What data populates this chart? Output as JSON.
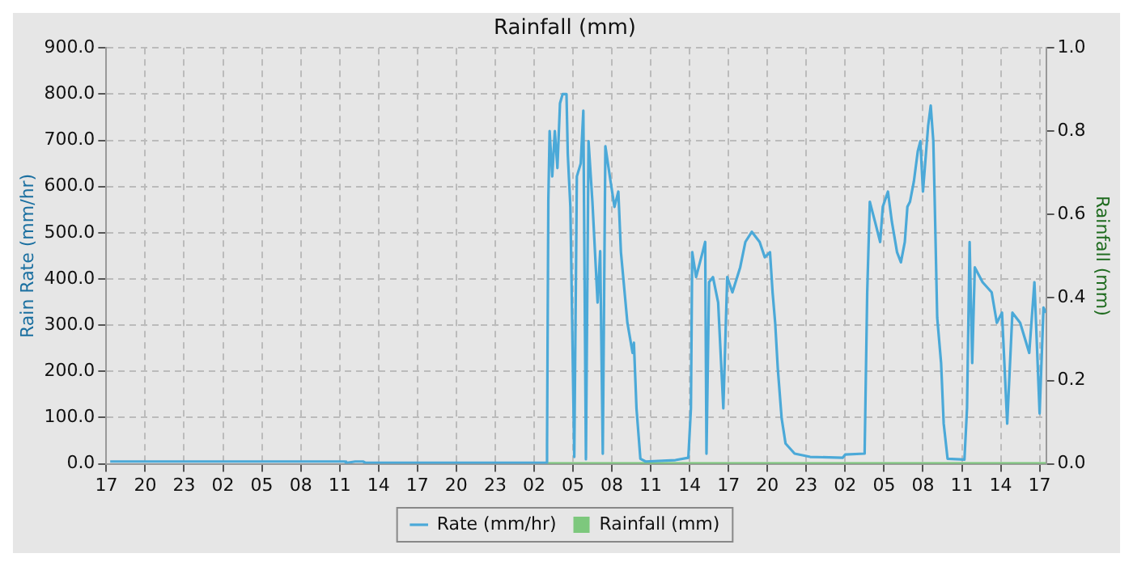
{
  "chart_data": {
    "type": "line",
    "title": "Rainfall (mm)",
    "ylabel": "Rain Rate (mm/hr)",
    "y2label": "Rainfall (mm)",
    "xlim": [
      "--01-01T17:00",
      "--01-04T17:30"
    ],
    "xticks": [
      {
        "value": "--01-01T17:00",
        "label": "17"
      },
      {
        "value": "--01-01T20:00",
        "label": "20"
      },
      {
        "value": "--01-01T23:00",
        "label": "23"
      },
      {
        "value": "--01-02T02:00",
        "label": "02"
      },
      {
        "value": "--01-02T05:00",
        "label": "05"
      },
      {
        "value": "--01-02T08:00",
        "label": "08"
      },
      {
        "value": "--01-02T11:00",
        "label": "11"
      },
      {
        "value": "--01-02T14:00",
        "label": "14"
      },
      {
        "value": "--01-02T17:00",
        "label": "17"
      },
      {
        "value": "--01-02T20:00",
        "label": "20"
      },
      {
        "value": "--01-02T23:00",
        "label": "23"
      },
      {
        "value": "--01-03T02:00",
        "label": "02"
      },
      {
        "value": "--01-03T05:00",
        "label": "05"
      },
      {
        "value": "--01-03T08:00",
        "label": "08"
      },
      {
        "value": "--01-03T11:00",
        "label": "11"
      },
      {
        "value": "--01-03T14:00",
        "label": "14"
      },
      {
        "value": "--01-03T17:00",
        "label": "17"
      },
      {
        "value": "--01-03T20:00",
        "label": "20"
      },
      {
        "value": "--01-03T23:00",
        "label": "23"
      },
      {
        "value": "--01-04T02:00",
        "label": "02"
      },
      {
        "value": "--01-04T05:00",
        "label": "05"
      },
      {
        "value": "--01-04T08:00",
        "label": "08"
      },
      {
        "value": "--01-04T11:00",
        "label": "11"
      },
      {
        "value": "--01-04T14:00",
        "label": "14"
      },
      {
        "value": "--01-04T17:00",
        "label": "17"
      }
    ],
    "ylim": [
      0,
      900
    ],
    "yticks": [
      {
        "value": 0,
        "label": "0.0"
      },
      {
        "value": 100,
        "label": "100.0"
      },
      {
        "value": 200,
        "label": "200.0"
      },
      {
        "value": 300,
        "label": "300.0"
      },
      {
        "value": 400,
        "label": "400.0"
      },
      {
        "value": 500,
        "label": "500.0"
      },
      {
        "value": 600,
        "label": "600.0"
      },
      {
        "value": 700,
        "label": "700.0"
      },
      {
        "value": 800,
        "label": "800.0"
      },
      {
        "value": 900,
        "label": "900.0"
      }
    ],
    "y2lim": [
      0,
      1
    ],
    "y2ticks": [
      {
        "value": 0,
        "label": "0.0"
      },
      {
        "value": 0.2,
        "label": "0.2"
      },
      {
        "value": 0.4,
        "label": "0.4"
      },
      {
        "value": 0.6,
        "label": "0.6"
      },
      {
        "value": 0.8,
        "label": "0.8"
      },
      {
        "value": 1,
        "label": "1.0"
      }
    ],
    "grid": true,
    "legend": "bottom",
    "line_style": "solid",
    "marker": "none",
    "series": [
      {
        "name": "Rate (mm/hr)",
        "color": "#4ba9d8",
        "axis": "y",
        "x": [
          "--01-01T17:18",
          "--01-02T11:24",
          "--01-02T11:30",
          "--01-02T12:12",
          "--01-02T12:48",
          "--01-02T13:00",
          "--01-03T02:54",
          "--01-03T03:00",
          "--01-03T03:06",
          "--01-03T03:12",
          "--01-03T03:24",
          "--01-03T03:36",
          "--01-03T03:48",
          "--01-03T04:00",
          "--01-03T04:12",
          "--01-03T04:30",
          "--01-03T04:36",
          "--01-03T04:48",
          "--01-03T05:06",
          "--01-03T05:18",
          "--01-03T05:36",
          "--01-03T05:48",
          "--01-03T06:00",
          "--01-03T06:12",
          "--01-03T06:30",
          "--01-03T06:54",
          "--01-03T07:06",
          "--01-03T07:18",
          "--01-03T07:30",
          "--01-03T07:54",
          "--01-03T08:12",
          "--01-03T08:30",
          "--01-03T08:42",
          "--01-03T09:12",
          "--01-03T09:36",
          "--01-03T09:42",
          "--01-03T09:54",
          "--01-03T10:12",
          "--01-03T10:36",
          "--01-03T12:54",
          "--01-03T13:54",
          "--01-03T14:06",
          "--01-03T14:12",
          "--01-03T14:30",
          "--01-03T15:00",
          "--01-03T15:12",
          "--01-03T15:18",
          "--01-03T15:30",
          "--01-03T15:48",
          "--01-03T16:12",
          "--01-03T16:36",
          "--01-03T16:54",
          "--01-03T17:18",
          "--01-03T17:54",
          "--01-03T18:18",
          "--01-03T18:48",
          "--01-03T19:24",
          "--01-03T19:48",
          "--01-03T20:12",
          "--01-03T20:24",
          "--01-03T20:36",
          "--01-03T20:48",
          "--01-03T21:06",
          "--01-03T21:24",
          "--01-03T22:06",
          "--01-03T23:18",
          "--01-04T01:48",
          "--01-04T02:00",
          "--01-04T03:30",
          "--01-04T03:42",
          "--01-04T03:54",
          "--01-04T04:18",
          "--01-04T04:42",
          "--01-04T04:54",
          "--01-04T05:18",
          "--01-04T05:36",
          "--01-04T06:00",
          "--01-04T06:18",
          "--01-04T06:36",
          "--01-04T06:48",
          "--01-04T07:00",
          "--01-04T07:18",
          "--01-04T07:36",
          "--01-04T07:48",
          "--01-04T08:00",
          "--01-04T08:24",
          "--01-04T08:36",
          "--01-04T08:48",
          "--01-04T08:54",
          "--01-04T09:06",
          "--01-04T09:24",
          "--01-04T09:36",
          "--01-04T09:54",
          "--01-04T11:12",
          "--01-04T11:24",
          "--01-04T11:36",
          "--01-04T11:48",
          "--01-04T12:00",
          "--01-04T12:36",
          "--01-04T13:18",
          "--01-04T13:42",
          "--01-04T14:06",
          "--01-04T14:30",
          "--01-04T14:54",
          "--01-04T15:30",
          "--01-04T16:12",
          "--01-04T16:36",
          "--01-04T17:00",
          "--01-04T17:18",
          "--01-04T17:30"
        ],
        "values": [
          5,
          5,
          2,
          5,
          5,
          2,
          2,
          40,
          570,
          720,
          622,
          720,
          640,
          780,
          800,
          800,
          670,
          556,
          15,
          622,
          650,
          764,
          10,
          698,
          567,
          349,
          460,
          22,
          687,
          611,
          556,
          589,
          458,
          305,
          240,
          262,
          120,
          11,
          5,
          8,
          13,
          120,
          458,
          404,
          458,
          480,
          22,
          393,
          404,
          349,
          120,
          404,
          371,
          425,
          480,
          502,
          480,
          447,
          458,
          371,
          305,
          207,
          98,
          44,
          22,
          15,
          13,
          20,
          22,
          371,
          567,
          524,
          480,
          556,
          589,
          524,
          458,
          436,
          480,
          556,
          567,
          611,
          676,
          698,
          589,
          731,
          775,
          698,
          578,
          316,
          218,
          87,
          11,
          9,
          120,
          480,
          218,
          425,
          393,
          371,
          305,
          327,
          87,
          327,
          305,
          240,
          393,
          109,
          338,
          327
        ]
      },
      {
        "name": "Rainfall (mm)",
        "color": "#7dc87d",
        "type": "bar",
        "axis": "y2",
        "x": [
          "--01-03T03:00",
          "--01-04T17:30"
        ],
        "values": [
          0,
          0
        ]
      }
    ]
  }
}
